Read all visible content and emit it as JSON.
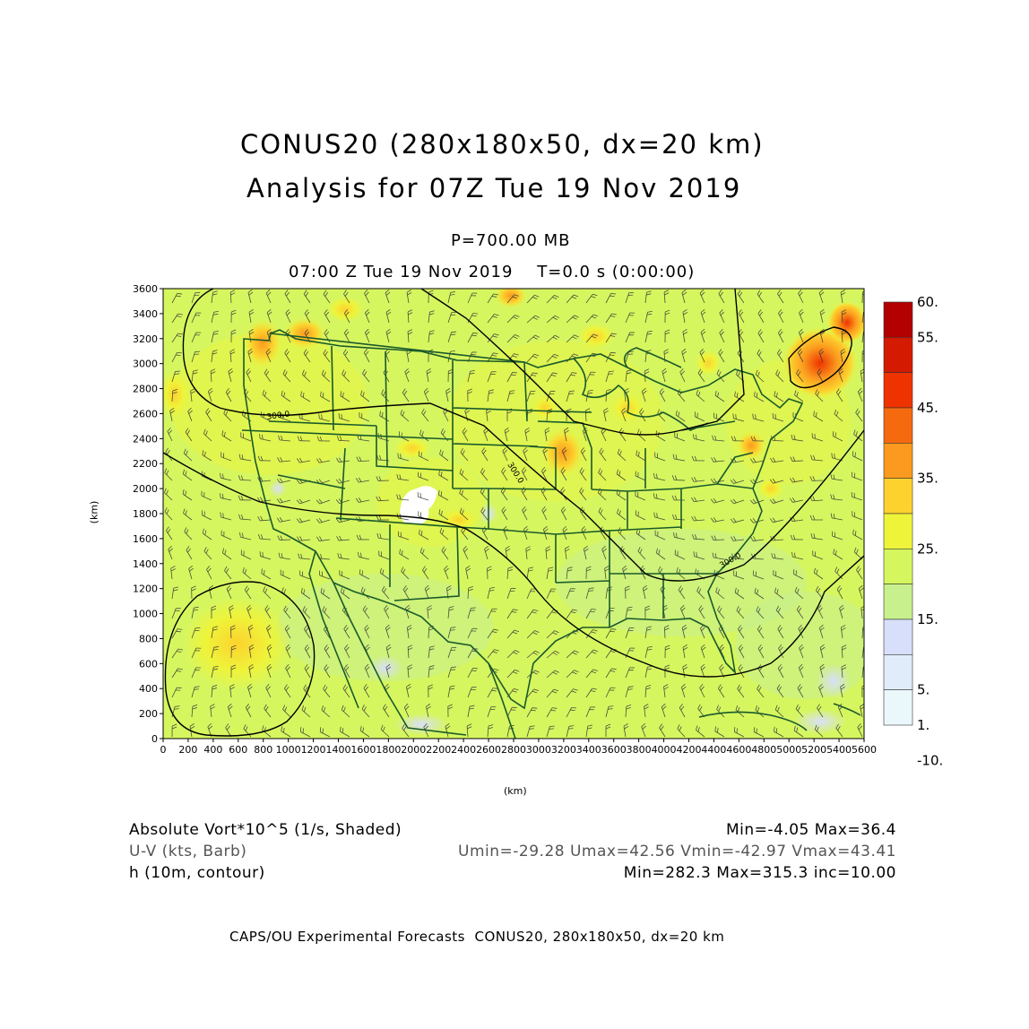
{
  "header": {
    "title_line1": "CONUS20 (280x180x50, dx=20 km)",
    "title_line2": "Analysis for 07Z Tue 19 Nov 2019",
    "level": "P=700.00 MB",
    "time": "07:00 Z Tue 19 Nov 2019    T=0.0 s (0:00:00)"
  },
  "axes": {
    "x_label": "(km)",
    "y_label": "(km)",
    "x_ticks": [
      "0",
      "200",
      "400",
      "600",
      "800",
      "1000",
      "1200",
      "1400",
      "1600",
      "1800",
      "2000",
      "2200",
      "2400",
      "2600",
      "2800",
      "3000",
      "3200",
      "3400",
      "3600",
      "3800",
      "4000",
      "4200",
      "4400",
      "4600",
      "4800",
      "5000",
      "5200",
      "5400",
      "5600"
    ],
    "y_ticks": [
      "0",
      "200",
      "400",
      "600",
      "800",
      "1000",
      "1200",
      "1400",
      "1600",
      "1800",
      "2000",
      "2200",
      "2400",
      "2600",
      "2800",
      "3000",
      "3200",
      "3400",
      "3600"
    ],
    "x_range": [
      0,
      5600
    ],
    "y_range": [
      0,
      3600
    ]
  },
  "colorbar": {
    "labels": [
      "60.",
      "55.",
      "45.",
      "35.",
      "25.",
      "15.",
      "5.",
      "1.",
      "-10."
    ],
    "colors": [
      "#b30000",
      "#d41a00",
      "#ee3300",
      "#f56a0f",
      "#fb9a1e",
      "#fdd22e",
      "#eef43a",
      "#d6f660",
      "#c8f08c",
      "#d8dffa",
      "#e0ecfa",
      "#eaf8fc"
    ]
  },
  "contours": {
    "labels": [
      "300.0",
      "300.0",
      "300.0"
    ]
  },
  "info": {
    "row1_left": "Absolute Vort*10^5 (1/s, Shaded)",
    "row1_right": "Min=-4.05 Max=36.4",
    "row2_left": "U-V (kts, Barb)",
    "row2_right": "Umin=-29.28 Umax=42.56 Vmin=-42.97 Vmax=43.41",
    "row3_left": "h (10m, contour)",
    "row3_right": "Min=282.3 Max=315.3 inc=10.00"
  },
  "footer": "CAPS/OU Experimental Forecasts  CONUS20, 280x180x50, dx=20 km"
}
